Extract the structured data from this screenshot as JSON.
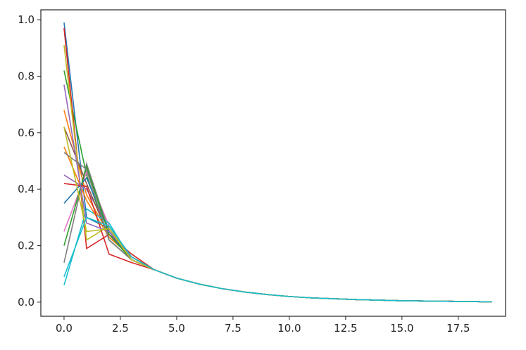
{
  "chart_data": {
    "type": "line",
    "x": [
      0,
      1,
      2,
      3,
      4,
      5,
      6,
      7,
      8,
      9,
      10,
      11,
      12,
      13,
      14,
      15,
      16,
      17,
      18,
      19
    ],
    "series": [
      {
        "color": "#1f77b4",
        "values": [
          0.99,
          0.3,
          0.26,
          0.15,
          0.115,
          0.085,
          0.064,
          0.048,
          0.036,
          0.027,
          0.02,
          0.015,
          0.012,
          0.009,
          0.007,
          0.005,
          0.004,
          0.003,
          0.002,
          0.001
        ]
      },
      {
        "color": "#ff7f0e",
        "values": [
          0.68,
          0.38,
          0.24,
          0.16,
          0.115,
          0.085,
          0.064,
          0.048,
          0.036,
          0.027,
          0.02,
          0.015,
          0.012,
          0.009,
          0.007,
          0.005,
          0.004,
          0.003,
          0.002,
          0.001
        ]
      },
      {
        "color": "#2ca02c",
        "values": [
          0.82,
          0.45,
          0.22,
          0.15,
          0.115,
          0.085,
          0.064,
          0.048,
          0.036,
          0.027,
          0.02,
          0.015,
          0.012,
          0.009,
          0.007,
          0.005,
          0.004,
          0.003,
          0.002,
          0.001
        ]
      },
      {
        "color": "#d62728",
        "values": [
          0.97,
          0.19,
          0.24,
          0.17,
          0.115,
          0.085,
          0.064,
          0.048,
          0.036,
          0.027,
          0.02,
          0.015,
          0.012,
          0.009,
          0.007,
          0.005,
          0.004,
          0.003,
          0.002,
          0.001
        ]
      },
      {
        "color": "#9467bd",
        "values": [
          0.45,
          0.4,
          0.26,
          0.15,
          0.115,
          0.085,
          0.064,
          0.048,
          0.036,
          0.027,
          0.02,
          0.015,
          0.012,
          0.009,
          0.007,
          0.005,
          0.004,
          0.003,
          0.002,
          0.001
        ]
      },
      {
        "color": "#8c564b",
        "values": [
          0.62,
          0.42,
          0.23,
          0.16,
          0.115,
          0.085,
          0.064,
          0.048,
          0.036,
          0.027,
          0.02,
          0.015,
          0.012,
          0.009,
          0.007,
          0.005,
          0.004,
          0.003,
          0.002,
          0.001
        ]
      },
      {
        "color": "#e377c2",
        "values": [
          0.25,
          0.46,
          0.27,
          0.15,
          0.115,
          0.085,
          0.064,
          0.048,
          0.036,
          0.027,
          0.02,
          0.015,
          0.012,
          0.009,
          0.007,
          0.005,
          0.004,
          0.003,
          0.002,
          0.001
        ]
      },
      {
        "color": "#7f7f7f",
        "values": [
          0.14,
          0.49,
          0.25,
          0.16,
          0.115,
          0.085,
          0.064,
          0.048,
          0.036,
          0.027,
          0.02,
          0.015,
          0.012,
          0.009,
          0.007,
          0.005,
          0.004,
          0.003,
          0.002,
          0.001
        ]
      },
      {
        "color": "#bcbd22",
        "values": [
          0.91,
          0.22,
          0.27,
          0.15,
          0.115,
          0.085,
          0.064,
          0.048,
          0.036,
          0.027,
          0.02,
          0.015,
          0.012,
          0.009,
          0.007,
          0.005,
          0.004,
          0.003,
          0.002,
          0.001
        ]
      },
      {
        "color": "#17becf",
        "values": [
          0.06,
          0.33,
          0.28,
          0.15,
          0.115,
          0.085,
          0.064,
          0.048,
          0.036,
          0.027,
          0.02,
          0.015,
          0.012,
          0.009,
          0.007,
          0.005,
          0.004,
          0.003,
          0.002,
          0.001
        ]
      },
      {
        "color": "#1f77b4",
        "values": [
          0.35,
          0.44,
          0.25,
          0.15,
          0.115,
          0.085,
          0.064,
          0.048,
          0.036,
          0.027,
          0.02,
          0.015,
          0.012,
          0.009,
          0.007,
          0.005,
          0.004,
          0.003,
          0.002,
          0.001
        ]
      },
      {
        "color": "#ff7f0e",
        "values": [
          0.55,
          0.36,
          0.23,
          0.16,
          0.115,
          0.085,
          0.064,
          0.048,
          0.036,
          0.027,
          0.02,
          0.015,
          0.012,
          0.009,
          0.007,
          0.005,
          0.004,
          0.003,
          0.002,
          0.001
        ]
      },
      {
        "color": "#2ca02c",
        "values": [
          0.2,
          0.48,
          0.24,
          0.15,
          0.115,
          0.085,
          0.064,
          0.048,
          0.036,
          0.027,
          0.02,
          0.015,
          0.012,
          0.009,
          0.007,
          0.005,
          0.004,
          0.003,
          0.002,
          0.001
        ]
      },
      {
        "color": "#d62728",
        "values": [
          0.42,
          0.41,
          0.17,
          0.14,
          0.115,
          0.085,
          0.064,
          0.048,
          0.036,
          0.027,
          0.02,
          0.015,
          0.012,
          0.009,
          0.007,
          0.005,
          0.004,
          0.003,
          0.002,
          0.001
        ]
      },
      {
        "color": "#9467bd",
        "values": [
          0.77,
          0.28,
          0.25,
          0.16,
          0.115,
          0.085,
          0.064,
          0.048,
          0.036,
          0.027,
          0.02,
          0.015,
          0.012,
          0.009,
          0.007,
          0.005,
          0.004,
          0.003,
          0.002,
          0.001
        ]
      },
      {
        "color": "#7f7f7f",
        "values": [
          0.53,
          0.47,
          0.22,
          0.15,
          0.115,
          0.085,
          0.064,
          0.048,
          0.036,
          0.027,
          0.02,
          0.015,
          0.012,
          0.009,
          0.007,
          0.005,
          0.004,
          0.003,
          0.002,
          0.001
        ]
      },
      {
        "color": "#bcbd22",
        "values": [
          0.62,
          0.25,
          0.26,
          0.15,
          0.115,
          0.085,
          0.064,
          0.048,
          0.036,
          0.027,
          0.02,
          0.015,
          0.012,
          0.009,
          0.007,
          0.005,
          0.004,
          0.003,
          0.002,
          0.001
        ]
      },
      {
        "color": "#17becf",
        "values": [
          0.09,
          0.3,
          0.27,
          0.16,
          0.115,
          0.085,
          0.064,
          0.048,
          0.036,
          0.027,
          0.02,
          0.015,
          0.012,
          0.009,
          0.007,
          0.005,
          0.004,
          0.003,
          0.002,
          0.001
        ]
      }
    ],
    "xlim": [
      -1.03,
      19.6
    ],
    "xticks": [
      {
        "value": 0,
        "label": "0.0"
      },
      2.5,
      {
        "value": 5,
        "label": "5.0"
      },
      7.5,
      {
        "value": 10,
        "label": "10.0"
      },
      12.5,
      {
        "value": 15,
        "label": "15.0"
      },
      17.5
    ],
    "ylim": [
      -0.05,
      1.035
    ],
    "yticks": [
      {
        "value": 0,
        "label": "0.0"
      },
      0.2,
      0.4,
      0.6,
      0.8,
      {
        "value": 1,
        "label": "1.0"
      }
    ],
    "grid": false
  }
}
